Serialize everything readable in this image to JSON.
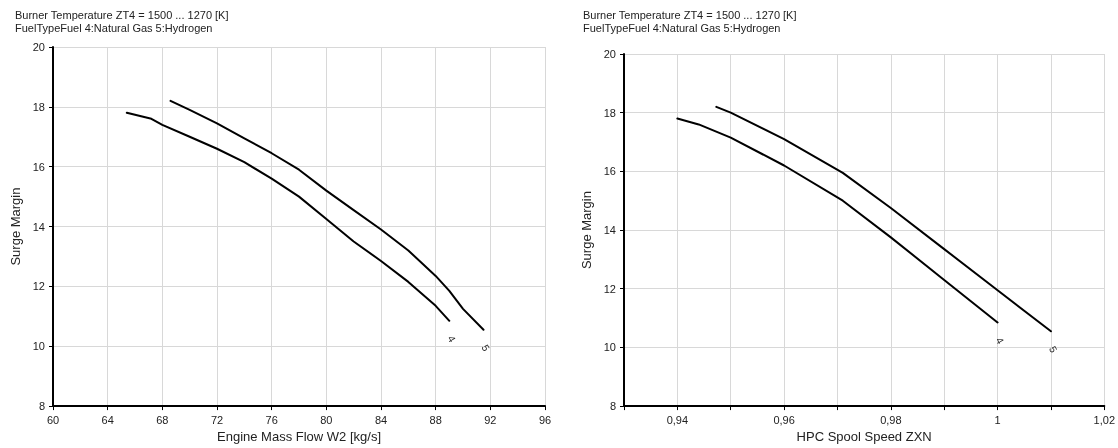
{
  "chart_data": [
    {
      "type": "line",
      "title": "Burner Temperature ZT4 = 1500 ... 1270 [K]",
      "subtitle": "FuelTypeFuel 4:Natural Gas 5:Hydrogen",
      "xlabel": "Engine Mass Flow W2 [kg/s]",
      "ylabel": "Surge Margin",
      "series": [
        {
          "name": "4",
          "color": "#000000",
          "x": [
            65.4,
            67.2,
            68,
            70,
            72,
            74,
            76,
            78,
            80,
            82,
            84,
            86,
            88,
            89
          ],
          "values": [
            17.8,
            17.6,
            17.4,
            17.0,
            16.6,
            16.15,
            15.6,
            15.0,
            14.25,
            13.5,
            12.85,
            12.15,
            11.35,
            10.85
          ]
        },
        {
          "name": "5",
          "color": "#000000",
          "x": [
            68.6,
            70,
            72,
            74,
            76,
            78,
            80,
            82,
            84,
            86,
            88,
            89,
            90,
            91.5
          ],
          "values": [
            18.2,
            17.9,
            17.45,
            16.95,
            16.45,
            15.9,
            15.2,
            14.55,
            13.9,
            13.2,
            12.35,
            11.85,
            11.25,
            10.55
          ]
        }
      ],
      "xlim": [
        60,
        96
      ],
      "xticks": [
        60,
        64,
        68,
        72,
        76,
        80,
        84,
        88,
        92,
        96
      ],
      "ylim": [
        8,
        20
      ],
      "yticks": [
        8,
        10,
        12,
        14,
        16,
        18,
        20
      ],
      "grid": true,
      "legend": false,
      "marker": "none",
      "line_style": "solid"
    },
    {
      "type": "line",
      "title": "Burner Temperature ZT4 = 1500 ... 1270 [K]",
      "subtitle": "FuelTypeFuel 4:Natural Gas 5:Hydrogen",
      "xlabel": "HPC Spool Speed ZXN",
      "ylabel": "Surge Margin",
      "series": [
        {
          "name": "4",
          "color": "#000000",
          "x": [
            0.94,
            0.944,
            0.95,
            0.96,
            0.971,
            0.98,
            0.99,
            1.0
          ],
          "values": [
            17.8,
            17.6,
            17.15,
            16.2,
            15.0,
            13.75,
            12.3,
            10.85
          ]
        },
        {
          "name": "5",
          "color": "#000000",
          "x": [
            0.9473,
            0.95,
            0.96,
            0.971,
            0.98,
            0.99,
            1.0,
            1.01
          ],
          "values": [
            18.2,
            18.0,
            17.1,
            15.95,
            14.75,
            13.35,
            11.95,
            10.55
          ]
        }
      ],
      "xlim": [
        0.93,
        1.02
      ],
      "xticks": [
        {
          "value": 0.93,
          "label": null
        },
        {
          "value": 0.94,
          "label": "0,94"
        },
        {
          "value": 0.95,
          "label": null
        },
        {
          "value": 0.96,
          "label": "0,96"
        },
        {
          "value": 0.97,
          "label": null
        },
        {
          "value": 0.98,
          "label": "0,98"
        },
        {
          "value": 0.99,
          "label": null
        },
        {
          "value": 1.0,
          "label": "1"
        },
        {
          "value": 1.01,
          "label": null
        },
        {
          "value": 1.02,
          "label": "1,02"
        }
      ],
      "ylim": [
        8,
        20
      ],
      "yticks": [
        8,
        10,
        12,
        14,
        16,
        18,
        20
      ],
      "grid": true,
      "legend": false,
      "marker": "none",
      "line_style": "solid"
    }
  ]
}
